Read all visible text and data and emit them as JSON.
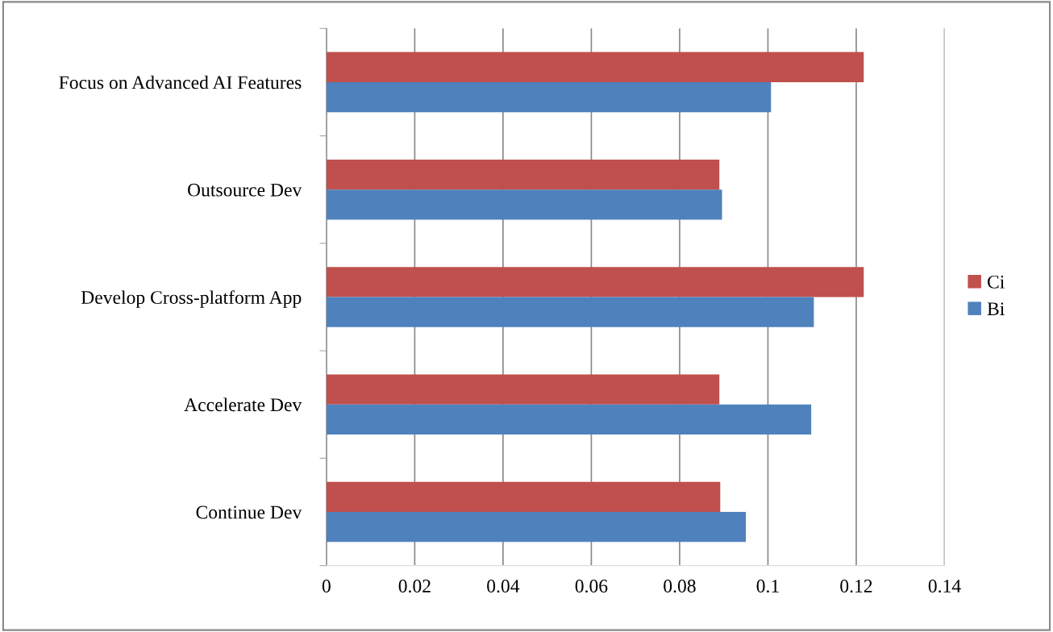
{
  "chart_data": {
    "type": "bar",
    "orientation": "horizontal",
    "categories": [
      "Focus on Advanced AI Features",
      "Outsource Dev",
      "Develop Cross-platform App",
      "Accelerate Dev",
      "Continue Dev"
    ],
    "series": [
      {
        "name": "Ci",
        "color": "#c0504d",
        "values": [
          0.1217,
          0.089,
          0.1217,
          0.089,
          0.0892
        ]
      },
      {
        "name": "Bi",
        "color": "#4f81bd",
        "values": [
          0.1007,
          0.0896,
          0.1104,
          0.1098,
          0.095
        ]
      }
    ],
    "xlim": [
      0,
      0.14
    ],
    "xticks": [
      0,
      0.02,
      0.04,
      0.06,
      0.08,
      0.1,
      0.12,
      0.14
    ],
    "grid": "x",
    "legend": "right"
  }
}
